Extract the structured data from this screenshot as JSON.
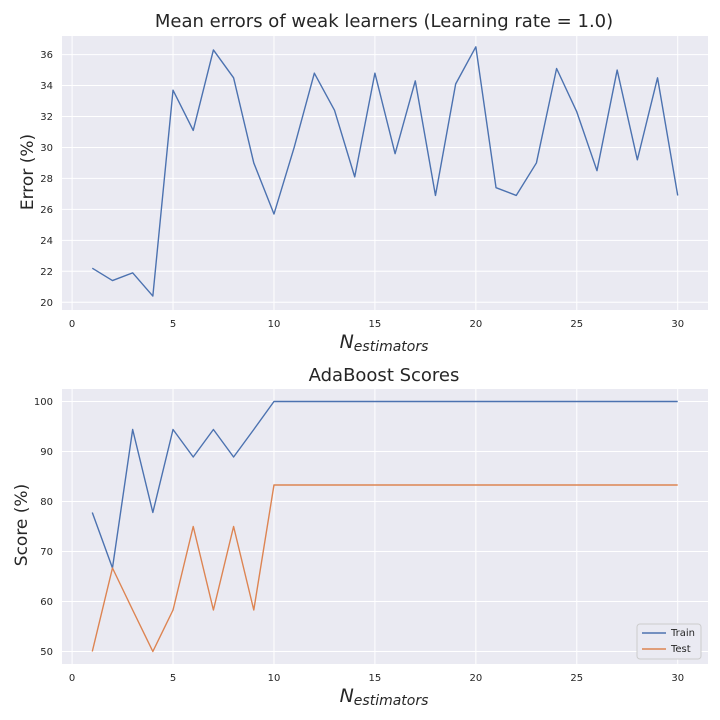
{
  "chart_data": [
    {
      "type": "line",
      "title": "Mean errors of weak learners   (Learning rate = 1.0)",
      "xlabel": "N",
      "xlabel_sub": "estimators",
      "ylabel": "Error (%)",
      "xlim": [
        -0.5,
        31.5
      ],
      "ylim": [
        19.5,
        37.2
      ],
      "xticks": [
        0,
        5,
        10,
        15,
        20,
        25,
        30
      ],
      "yticks": [
        20,
        22,
        24,
        26,
        28,
        30,
        32,
        34,
        36
      ],
      "grid": true,
      "series": [
        {
          "color": "#4c72b0",
          "x": [
            1,
            2,
            3,
            4,
            5,
            6,
            7,
            8,
            9,
            10,
            11,
            12,
            13,
            14,
            15,
            16,
            17,
            18,
            19,
            20,
            21,
            22,
            23,
            24,
            25,
            26,
            27,
            28,
            29,
            30
          ],
          "values": [
            22.2,
            21.4,
            21.9,
            20.4,
            33.7,
            31.1,
            36.3,
            34.5,
            29.0,
            25.7,
            30.0,
            34.8,
            32.4,
            28.1,
            34.8,
            29.6,
            34.3,
            26.9,
            34.1,
            36.5,
            27.4,
            26.9,
            29.0,
            35.1,
            32.3,
            28.5,
            35.0,
            29.2,
            34.5,
            26.9
          ]
        }
      ]
    },
    {
      "type": "line",
      "title": "AdaBoost Scores",
      "xlabel": "N",
      "xlabel_sub": "estimators",
      "ylabel": "Score (%)",
      "xlim": [
        -0.5,
        31.5
      ],
      "ylim": [
        47.5,
        102.5
      ],
      "xticks": [
        0,
        5,
        10,
        15,
        20,
        25,
        30
      ],
      "yticks": [
        50,
        60,
        70,
        80,
        90,
        100
      ],
      "grid": true,
      "legend": "bottom-right",
      "series": [
        {
          "name": "Train",
          "color": "#4c72b0",
          "x": [
            1,
            2,
            3,
            4,
            5,
            6,
            7,
            8,
            9,
            10,
            11,
            12,
            13,
            14,
            15,
            16,
            17,
            18,
            19,
            20,
            21,
            22,
            23,
            24,
            25,
            26,
            27,
            28,
            29,
            30
          ],
          "values": [
            77.8,
            66.7,
            94.4,
            77.8,
            94.4,
            88.9,
            94.4,
            88.9,
            94.4,
            100,
            100,
            100,
            100,
            100,
            100,
            100,
            100,
            100,
            100,
            100,
            100,
            100,
            100,
            100,
            100,
            100,
            100,
            100,
            100,
            100
          ]
        },
        {
          "name": "Test",
          "color": "#dd8452",
          "x": [
            1,
            2,
            3,
            4,
            5,
            6,
            7,
            8,
            9,
            10,
            11,
            12,
            13,
            14,
            15,
            16,
            17,
            18,
            19,
            20,
            21,
            22,
            23,
            24,
            25,
            26,
            27,
            28,
            29,
            30
          ],
          "values": [
            50.0,
            66.7,
            58.3,
            50.0,
            58.3,
            75.0,
            58.3,
            75.0,
            58.3,
            83.3,
            83.3,
            83.3,
            83.3,
            83.3,
            83.3,
            83.3,
            83.3,
            83.3,
            83.3,
            83.3,
            83.3,
            83.3,
            83.3,
            83.3,
            83.3,
            83.3,
            83.3,
            83.3,
            83.3,
            83.3
          ]
        }
      ]
    }
  ]
}
